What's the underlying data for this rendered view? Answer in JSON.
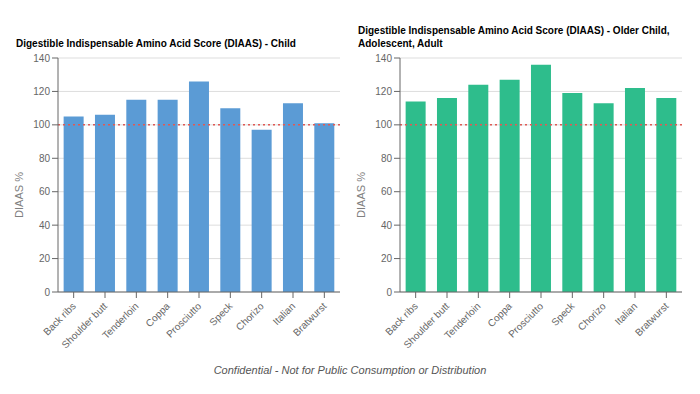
{
  "chart_data": [
    {
      "type": "bar",
      "title": "Digestible Indispensable Amino Acid Score (DIAAS) - Child",
      "categories": [
        "Back ribs",
        "Shoulder butt",
        "Tenderloin",
        "Coppa",
        "Prosciutto",
        "Speck",
        "Chorizo",
        "Italian",
        "Bratwurst"
      ],
      "values": [
        105,
        106,
        115,
        115,
        126,
        110,
        97,
        113,
        101
      ],
      "color": "#5B9BD5",
      "ylabel": "DIAAS %",
      "ylim": [
        0,
        140
      ],
      "yticks": [
        0,
        20,
        40,
        60,
        80,
        100,
        120,
        140
      ],
      "grid": true,
      "reference_line": {
        "y": 100,
        "color": "#E05A55",
        "line_style": "dotted"
      }
    },
    {
      "type": "bar",
      "title": "Digestible Indispensable Amino Acid Score (DIAAS) - Older Child,\nAdolescent, Adult",
      "categories": [
        "Back ribs",
        "Shoulder butt",
        "Tenderloin",
        "Coppa",
        "Prosciutto",
        "Speck",
        "Chorizo",
        "Italian",
        "Bratwurst"
      ],
      "values": [
        114,
        116,
        124,
        127,
        136,
        119,
        113,
        122,
        116
      ],
      "color": "#2EBD8C",
      "ylabel": "DIAAS %",
      "ylim": [
        0,
        140
      ],
      "yticks": [
        0,
        20,
        40,
        60,
        80,
        100,
        120,
        140
      ],
      "grid": true,
      "reference_line": {
        "y": 100,
        "color": "#E05A55",
        "line_style": "dotted"
      }
    }
  ],
  "footnote": "Confidential - Not for Public Consumption or Distribution"
}
